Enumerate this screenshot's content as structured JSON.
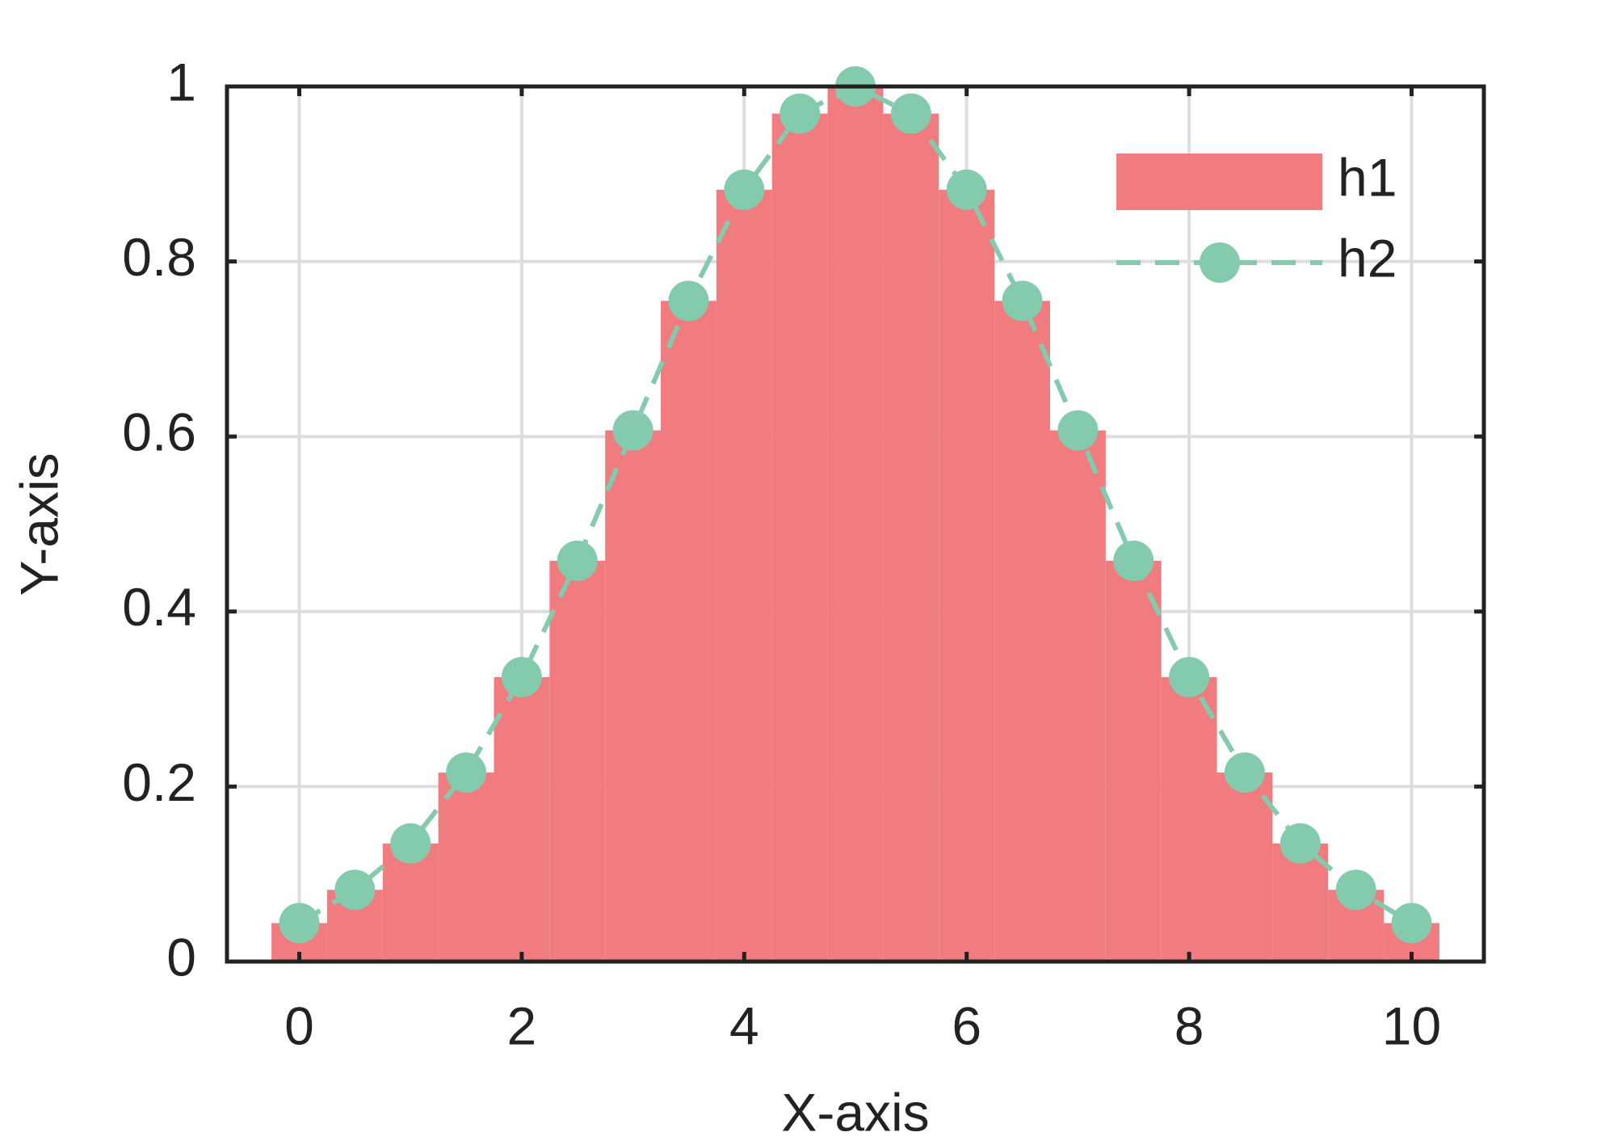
{
  "chart_data": {
    "type": "bar",
    "x_label": "X-axis",
    "y_label": "Y-axis",
    "x": [
      0,
      0.5,
      1,
      1.5,
      2,
      2.5,
      3,
      3.5,
      4,
      4.5,
      5,
      5.5,
      6,
      6.5,
      7,
      7.5,
      8,
      8.5,
      9,
      9.5,
      10
    ],
    "bar_width": 0.5,
    "series": [
      {
        "name": "h1",
        "type": "bar",
        "color": "#f07c80",
        "values": [
          0.044,
          0.082,
          0.135,
          0.216,
          0.325,
          0.458,
          0.607,
          0.755,
          0.882,
          0.969,
          1,
          0.969,
          0.882,
          0.755,
          0.607,
          0.458,
          0.325,
          0.216,
          0.135,
          0.082,
          0.044
        ]
      },
      {
        "name": "h2",
        "type": "line",
        "color": "#84cbad",
        "dashed": true,
        "marker": "circle",
        "values": [
          0.044,
          0.082,
          0.135,
          0.216,
          0.325,
          0.458,
          0.607,
          0.755,
          0.882,
          0.969,
          1,
          0.969,
          0.882,
          0.755,
          0.607,
          0.458,
          0.325,
          0.216,
          0.135,
          0.082,
          0.044
        ]
      }
    ],
    "xlim": [
      -0.65,
      10.65
    ],
    "ylim": [
      0,
      1
    ],
    "xticks": [
      0,
      2,
      4,
      6,
      8,
      10
    ],
    "yticks": [
      0,
      0.2,
      0.4,
      0.6,
      0.8,
      1
    ],
    "grid": true,
    "legend": "upper right"
  }
}
